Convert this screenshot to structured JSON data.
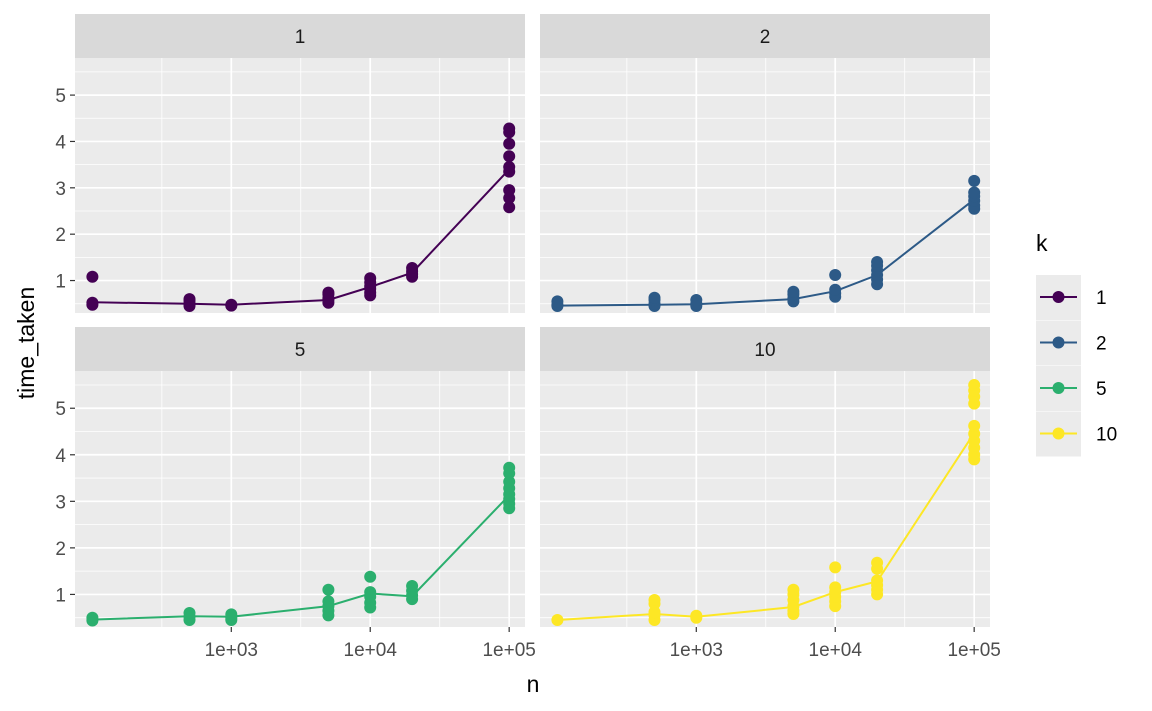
{
  "chart_data": {
    "type": "scatter",
    "subtype": "faceted scatter with mean line, log10 x axis",
    "xlabel": "n",
    "ylabel": "time_taken",
    "x_scale": "log10",
    "x_ticks": [
      1000,
      10000,
      100000
    ],
    "x_tick_labels": [
      "1e+03",
      "1e+04",
      "1e+05"
    ],
    "xlim": [
      75,
      130000
    ],
    "y_ticks": [
      1,
      2,
      3,
      4,
      5
    ],
    "y_tick_labels": [
      "1",
      "2",
      "3",
      "4",
      "5"
    ],
    "ylim": [
      0.3,
      5.8
    ],
    "grid": true,
    "legend": {
      "title": "k",
      "position": "right",
      "entries": [
        "1",
        "2",
        "5",
        "10"
      ]
    },
    "series": [
      {
        "name": "1",
        "facet_label": "1",
        "color": "#440154",
        "line": {
          "x": [
            100,
            500,
            1000,
            5000,
            10000,
            20000,
            100000
          ],
          "y": [
            0.53,
            0.5,
            0.48,
            0.58,
            0.86,
            1.17,
            3.4
          ]
        },
        "points": [
          [
            100,
            0.48
          ],
          [
            100,
            0.52
          ],
          [
            100,
            1.08
          ],
          [
            500,
            0.45
          ],
          [
            500,
            0.5
          ],
          [
            500,
            0.56
          ],
          [
            500,
            0.6
          ],
          [
            1000,
            0.46
          ],
          [
            1000,
            0.48
          ],
          [
            5000,
            0.52
          ],
          [
            5000,
            0.58
          ],
          [
            5000,
            0.62
          ],
          [
            5000,
            0.7
          ],
          [
            5000,
            0.74
          ],
          [
            10000,
            0.68
          ],
          [
            10000,
            0.74
          ],
          [
            10000,
            0.82
          ],
          [
            10000,
            0.88
          ],
          [
            10000,
            0.96
          ],
          [
            10000,
            1.05
          ],
          [
            20000,
            1.08
          ],
          [
            20000,
            1.14
          ],
          [
            20000,
            1.2
          ],
          [
            20000,
            1.27
          ],
          [
            100000,
            2.58
          ],
          [
            100000,
            2.78
          ],
          [
            100000,
            2.95
          ],
          [
            100000,
            3.35
          ],
          [
            100000,
            3.45
          ],
          [
            100000,
            3.68
          ],
          [
            100000,
            3.95
          ],
          [
            100000,
            4.2
          ],
          [
            100000,
            4.28
          ]
        ]
      },
      {
        "name": "2",
        "facet_label": "2",
        "color": "#2D5A87",
        "line": {
          "x": [
            100,
            500,
            1000,
            5000,
            10000,
            20000,
            100000
          ],
          "y": [
            0.46,
            0.48,
            0.49,
            0.6,
            0.77,
            1.12,
            2.75
          ]
        },
        "points": [
          [
            100,
            0.45
          ],
          [
            100,
            0.48
          ],
          [
            100,
            0.55
          ],
          [
            500,
            0.45
          ],
          [
            500,
            0.5
          ],
          [
            500,
            0.58
          ],
          [
            500,
            0.63
          ],
          [
            1000,
            0.45
          ],
          [
            1000,
            0.5
          ],
          [
            1000,
            0.58
          ],
          [
            5000,
            0.55
          ],
          [
            5000,
            0.62
          ],
          [
            5000,
            0.7
          ],
          [
            5000,
            0.76
          ],
          [
            10000,
            0.65
          ],
          [
            10000,
            0.72
          ],
          [
            10000,
            0.8
          ],
          [
            10000,
            1.12
          ],
          [
            20000,
            0.92
          ],
          [
            20000,
            1.02
          ],
          [
            20000,
            1.12
          ],
          [
            20000,
            1.22
          ],
          [
            20000,
            1.32
          ],
          [
            20000,
            1.4
          ],
          [
            100000,
            2.55
          ],
          [
            100000,
            2.62
          ],
          [
            100000,
            2.72
          ],
          [
            100000,
            2.82
          ],
          [
            100000,
            2.9
          ],
          [
            100000,
            3.15
          ]
        ]
      },
      {
        "name": "5",
        "facet_label": "5",
        "color": "#2BAF6E",
        "line": {
          "x": [
            100,
            500,
            1000,
            5000,
            10000,
            20000,
            100000
          ],
          "y": [
            0.46,
            0.53,
            0.52,
            0.75,
            1.02,
            0.96,
            3.13
          ]
        },
        "points": [
          [
            100,
            0.44
          ],
          [
            100,
            0.5
          ],
          [
            500,
            0.45
          ],
          [
            500,
            0.52
          ],
          [
            500,
            0.6
          ],
          [
            1000,
            0.45
          ],
          [
            1000,
            0.5
          ],
          [
            1000,
            0.57
          ],
          [
            5000,
            0.55
          ],
          [
            5000,
            0.65
          ],
          [
            5000,
            0.75
          ],
          [
            5000,
            0.85
          ],
          [
            5000,
            1.1
          ],
          [
            10000,
            0.72
          ],
          [
            10000,
            0.82
          ],
          [
            10000,
            0.95
          ],
          [
            10000,
            1.05
          ],
          [
            10000,
            1.38
          ],
          [
            20000,
            0.9
          ],
          [
            20000,
            0.98
          ],
          [
            20000,
            1.08
          ],
          [
            20000,
            1.18
          ],
          [
            100000,
            2.85
          ],
          [
            100000,
            2.95
          ],
          [
            100000,
            3.05
          ],
          [
            100000,
            3.15
          ],
          [
            100000,
            3.28
          ],
          [
            100000,
            3.42
          ],
          [
            100000,
            3.6
          ],
          [
            100000,
            3.72
          ]
        ]
      },
      {
        "name": "10",
        "facet_label": "10",
        "color": "#FDE725",
        "line": {
          "x": [
            100,
            500,
            1000,
            5000,
            10000,
            20000,
            100000
          ],
          "y": [
            0.45,
            0.58,
            0.52,
            0.73,
            1.05,
            1.28,
            4.47
          ]
        },
        "points": [
          [
            100,
            0.45
          ],
          [
            500,
            0.45
          ],
          [
            500,
            0.55
          ],
          [
            500,
            0.62
          ],
          [
            500,
            0.8
          ],
          [
            500,
            0.88
          ],
          [
            1000,
            0.5
          ],
          [
            1000,
            0.54
          ],
          [
            5000,
            0.58
          ],
          [
            5000,
            0.65
          ],
          [
            5000,
            0.75
          ],
          [
            5000,
            0.88
          ],
          [
            5000,
            1.0
          ],
          [
            5000,
            1.1
          ],
          [
            10000,
            0.75
          ],
          [
            10000,
            0.85
          ],
          [
            10000,
            0.95
          ],
          [
            10000,
            1.05
          ],
          [
            10000,
            1.15
          ],
          [
            10000,
            1.58
          ],
          [
            20000,
            1.0
          ],
          [
            20000,
            1.1
          ],
          [
            20000,
            1.2
          ],
          [
            20000,
            1.3
          ],
          [
            20000,
            1.55
          ],
          [
            20000,
            1.68
          ],
          [
            100000,
            3.9
          ],
          [
            100000,
            4.0
          ],
          [
            100000,
            4.15
          ],
          [
            100000,
            4.3
          ],
          [
            100000,
            4.45
          ],
          [
            100000,
            4.62
          ],
          [
            100000,
            5.1
          ],
          [
            100000,
            5.25
          ],
          [
            100000,
            5.38
          ],
          [
            100000,
            5.5
          ]
        ]
      }
    ]
  }
}
